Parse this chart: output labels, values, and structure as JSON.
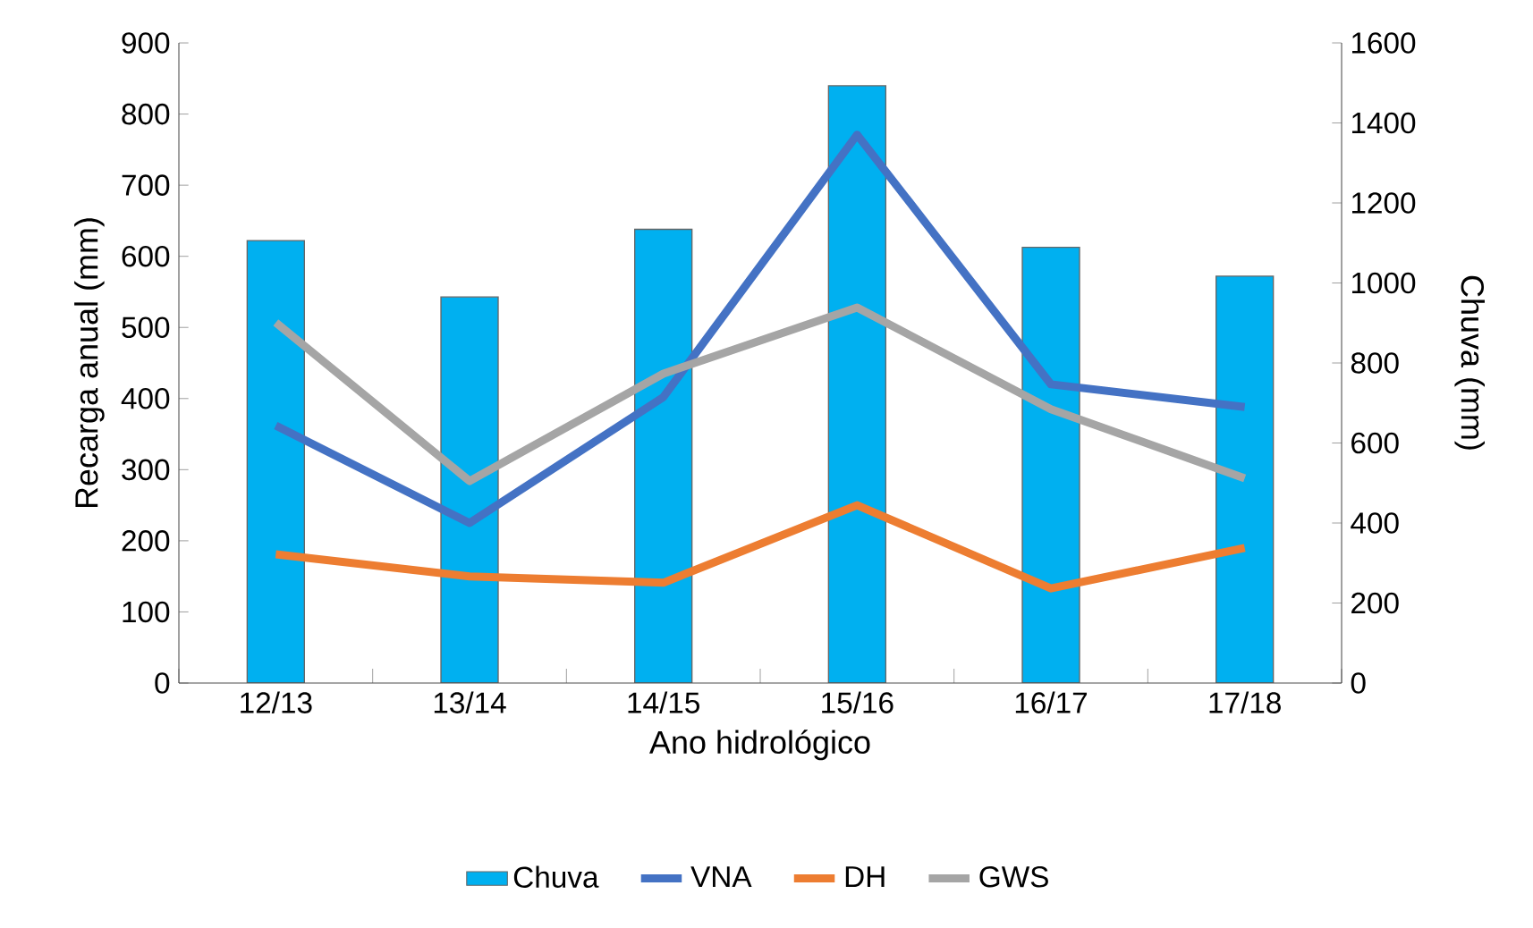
{
  "chart_data": {
    "type": "line",
    "xlabel": "Ano hidrológico",
    "ylabel": "Recarga anual (mm)",
    "y2label": "Chuva (mm)",
    "categories": [
      "12/13",
      "13/14",
      "14/15",
      "15/16",
      "16/17",
      "17/18"
    ],
    "series": [
      {
        "name": "Chuva",
        "type": "bar",
        "axis": "y2",
        "color": "#00b0f0",
        "values": [
          1106,
          965,
          1134,
          1493,
          1089,
          1017
        ]
      },
      {
        "name": "VNA",
        "color": "#4472c4",
        "values": [
          362,
          225,
          402,
          771,
          420,
          388
        ]
      },
      {
        "name": "DH",
        "color": "#ed7d31",
        "values": [
          181,
          150,
          141,
          250,
          133,
          190
        ]
      },
      {
        "name": "GWS",
        "color": "#a5a5a5",
        "values": [
          507,
          284,
          435,
          528,
          385,
          288
        ]
      }
    ],
    "ylim": [
      0,
      900
    ],
    "yticks": [
      0,
      100,
      200,
      300,
      400,
      500,
      600,
      700,
      800,
      900
    ],
    "y2lim": [
      0,
      1600
    ],
    "y2ticks": [
      0,
      200,
      400,
      600,
      800,
      1000,
      1200,
      1400,
      1600
    ],
    "legend": "bottom"
  }
}
